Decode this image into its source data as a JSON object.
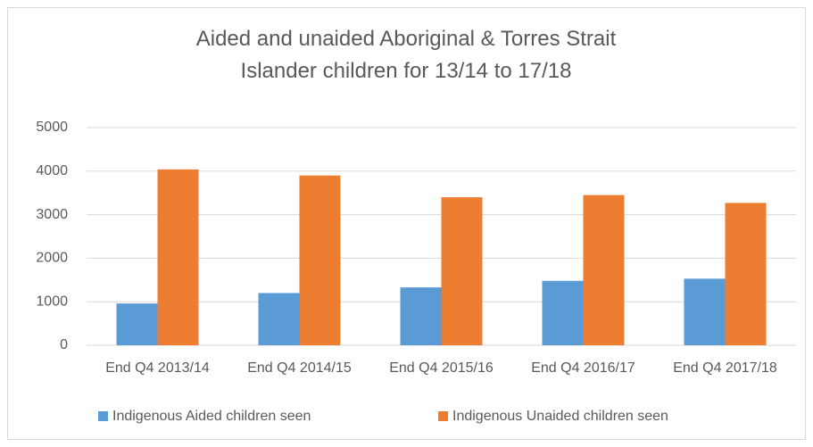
{
  "chart_data": {
    "type": "bar",
    "title": "Aided and unaided Aboriginal & Torres Strait Islander children for 13/14 to 17/18",
    "categories": [
      "End Q4 2013/14",
      "End Q4 2014/15",
      "End Q4 2015/16",
      "End Q4 2016/17",
      "End Q4 2017/18"
    ],
    "series": [
      {
        "name": "Indigenous Aided children seen",
        "color": "#5b9bd5",
        "values": [
          960,
          1200,
          1330,
          1480,
          1530
        ]
      },
      {
        "name": "Indigenous Unaided children seen",
        "color": "#ed7d31",
        "values": [
          4040,
          3900,
          3400,
          3450,
          3270
        ]
      }
    ],
    "ylim": [
      0,
      5000
    ],
    "yticks": [
      0,
      1000,
      2000,
      3000,
      4000,
      5000
    ],
    "grid": true,
    "legend": "bottom"
  }
}
